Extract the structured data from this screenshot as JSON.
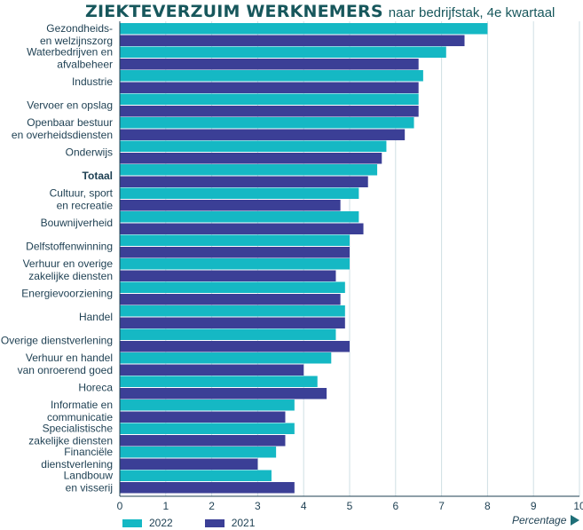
{
  "chart_data": {
    "type": "bar",
    "orientation": "horizontal",
    "title": "ZIEKTEVERZUIM WERKNEMERS",
    "subtitle": "naar bedrijfstak, 4e kwartaal",
    "xlabel": "Percentage",
    "xlim": [
      0,
      10
    ],
    "xticks": [
      "0",
      "1",
      "2",
      "3",
      "4",
      "5",
      "6",
      "7",
      "8",
      "9",
      "10"
    ],
    "grid": true,
    "legend_position": "bottom-left",
    "categories": [
      "Gezondheids-\nen welzijnszorg",
      "Waterbedrijven en\nafvalbeheer",
      "Industrie",
      "Vervoer en opslag",
      "Openbaar bestuur\nen overheidsdiensten",
      "Onderwijs",
      "Totaal",
      "Cultuur, sport\nen recreatie",
      "Bouwnijverheid",
      "Delfstoffenwinning",
      "Verhuur en overige\nzakelijke diensten",
      "Energievoorziening",
      "Handel",
      "Overige dienstverlening",
      "Verhuur en handel\nvan onroerend goed",
      "Horeca",
      "Informatie en\ncommunicatie",
      "Specialistische\nzakelijke diensten",
      "Financiële\ndienstverlening",
      "Landbouw\nen visserij"
    ],
    "bold_category": "Totaal",
    "series": [
      {
        "name": "2022",
        "color": "#15b8c4",
        "values": [
          8.0,
          7.1,
          6.6,
          6.5,
          6.4,
          5.8,
          5.6,
          5.2,
          5.2,
          5.0,
          5.0,
          4.9,
          4.9,
          4.7,
          4.6,
          4.3,
          3.8,
          3.8,
          3.4,
          3.3
        ]
      },
      {
        "name": "2021",
        "color": "#3b3f96",
        "values": [
          7.5,
          6.5,
          6.5,
          6.5,
          6.2,
          5.7,
          5.4,
          4.8,
          5.3,
          5.0,
          4.7,
          4.8,
          4.9,
          5.0,
          4.0,
          4.5,
          3.6,
          3.6,
          3.0,
          3.8
        ]
      }
    ]
  }
}
